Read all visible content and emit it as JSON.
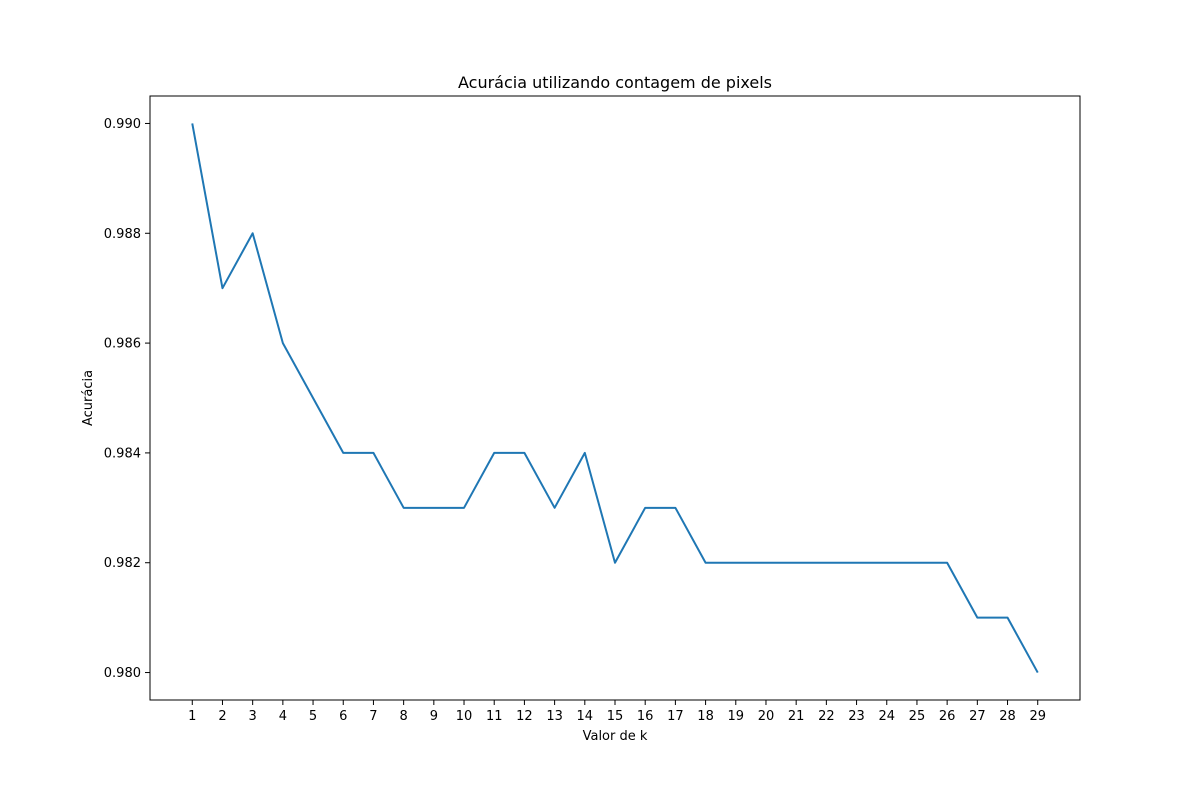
{
  "chart_data": {
    "type": "line",
    "title": "Acurácia utilizando contagem de pixels",
    "xlabel": "Valor de k",
    "ylabel": "Acurácia",
    "x": [
      1,
      2,
      3,
      4,
      5,
      6,
      7,
      8,
      9,
      10,
      11,
      12,
      13,
      14,
      15,
      16,
      17,
      18,
      19,
      20,
      21,
      22,
      23,
      24,
      25,
      26,
      27,
      28,
      29
    ],
    "x_tick_labels": [
      "1",
      "2",
      "3",
      "4",
      "5",
      "6",
      "7",
      "8",
      "9",
      "10",
      "11",
      "12",
      "13",
      "14",
      "15",
      "16",
      "17",
      "18",
      "19",
      "20",
      "21",
      "22",
      "23",
      "24",
      "25",
      "26",
      "27",
      "28",
      "29"
    ],
    "series": [
      {
        "values": [
          0.99,
          0.987,
          0.988,
          0.986,
          0.985,
          0.984,
          0.984,
          0.983,
          0.983,
          0.983,
          0.984,
          0.984,
          0.983,
          0.984,
          0.982,
          0.983,
          0.983,
          0.982,
          0.982,
          0.982,
          0.982,
          0.982,
          0.982,
          0.982,
          0.982,
          0.982,
          0.981,
          0.981,
          0.98
        ],
        "color": "#1f77b4"
      }
    ],
    "xlim": [
      -0.4,
      30.4
    ],
    "ylim": [
      0.9795,
      0.9905
    ],
    "y_ticks": [
      0.98,
      0.982,
      0.984,
      0.986,
      0.988,
      0.99
    ],
    "y_tick_labels": [
      "0.980",
      "0.982",
      "0.984",
      "0.986",
      "0.988",
      "0.990"
    ],
    "grid": false,
    "legend": "none"
  }
}
